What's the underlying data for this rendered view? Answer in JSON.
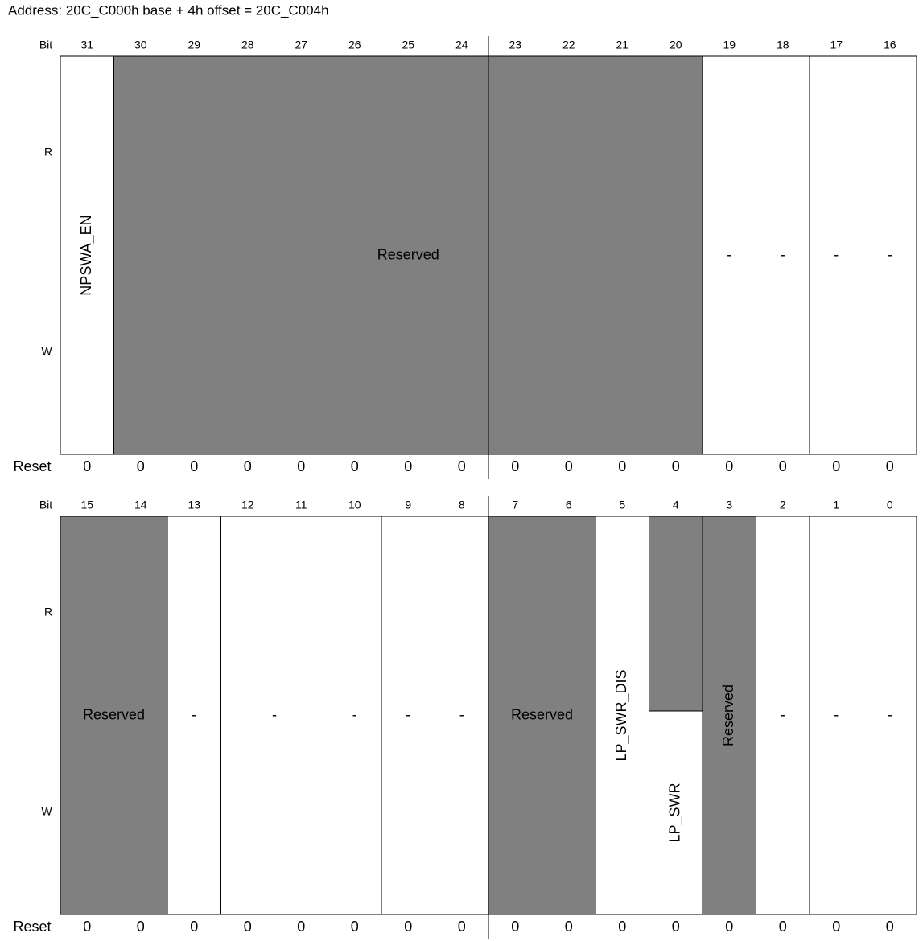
{
  "title": "Address: 20C_C000h base + 4h offset = 20C_C004h",
  "bit_label": "Bit",
  "read_label": "R",
  "write_label": "W",
  "reset_label": "Reset",
  "registers": [
    {
      "bits": [
        31,
        30,
        29,
        28,
        27,
        26,
        25,
        24,
        23,
        22,
        21,
        20,
        19,
        18,
        17,
        16
      ],
      "resets": [
        0,
        0,
        0,
        0,
        0,
        0,
        0,
        0,
        0,
        0,
        0,
        0,
        0,
        0,
        0,
        0
      ],
      "fields": [
        {
          "msb": 31,
          "lsb": 31,
          "label": "NPSWA_EN",
          "reserved": false
        },
        {
          "msb": 30,
          "lsb": 20,
          "label": "Reserved",
          "reserved": true
        },
        {
          "msb": 19,
          "lsb": 19,
          "label": "-",
          "reserved": false
        },
        {
          "msb": 18,
          "lsb": 18,
          "label": "-",
          "reserved": false
        },
        {
          "msb": 17,
          "lsb": 17,
          "label": "-",
          "reserved": false
        },
        {
          "msb": 16,
          "lsb": 16,
          "label": "-",
          "reserved": false
        }
      ]
    },
    {
      "bits": [
        15,
        14,
        13,
        12,
        11,
        10,
        9,
        8,
        7,
        6,
        5,
        4,
        3,
        2,
        1,
        0
      ],
      "resets": [
        0,
        0,
        0,
        0,
        0,
        0,
        0,
        0,
        0,
        0,
        0,
        0,
        0,
        0,
        0,
        0
      ],
      "fields": [
        {
          "msb": 15,
          "lsb": 14,
          "label": "Reserved",
          "reserved": true
        },
        {
          "msb": 13,
          "lsb": 13,
          "label": "-",
          "reserved": false
        },
        {
          "msb": 12,
          "lsb": 11,
          "label": "-",
          "reserved": false
        },
        {
          "msb": 10,
          "lsb": 10,
          "label": "-",
          "reserved": false
        },
        {
          "msb": 9,
          "lsb": 9,
          "label": "-",
          "reserved": false
        },
        {
          "msb": 8,
          "lsb": 8,
          "label": "-",
          "reserved": false
        },
        {
          "msb": 7,
          "lsb": 6,
          "label": "Reserved",
          "reserved": true
        },
        {
          "msb": 5,
          "lsb": 5,
          "label": "LP_SWR_DIS",
          "reserved": false
        },
        {
          "msb": 4,
          "lsb": 4,
          "label": "LP_SWR",
          "reserved": "read"
        },
        {
          "msb": 3,
          "lsb": 3,
          "label": "Reserved",
          "reserved": true
        },
        {
          "msb": 2,
          "lsb": 2,
          "label": "-",
          "reserved": false
        },
        {
          "msb": 1,
          "lsb": 1,
          "label": "-",
          "reserved": false
        },
        {
          "msb": 0,
          "lsb": 0,
          "label": "-",
          "reserved": false
        }
      ]
    }
  ]
}
